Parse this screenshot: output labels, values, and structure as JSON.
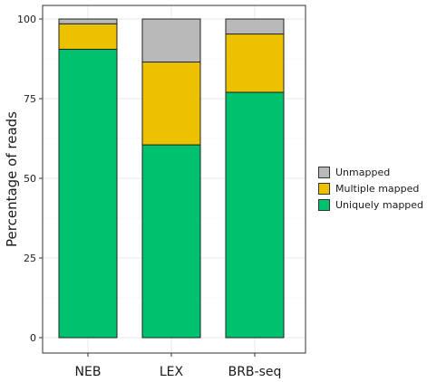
{
  "chart_data": {
    "type": "bar",
    "stacked": true,
    "categories": [
      "NEB",
      "LEX",
      "BRB-seq"
    ],
    "series": [
      {
        "name": "Uniquely mapped",
        "color": "#00C26E",
        "values": [
          90.5,
          60.5,
          77.0
        ]
      },
      {
        "name": "Multiple mapped",
        "color": "#EBC100",
        "values": [
          8.0,
          26.0,
          18.3
        ]
      },
      {
        "name": "Unmapped",
        "color": "#B9B9B9",
        "values": [
          1.5,
          13.5,
          4.7
        ]
      }
    ],
    "ylabel": "Percentage of reads",
    "xlabel": "",
    "ylim": [
      0,
      100
    ],
    "yticks": [
      0,
      25,
      50,
      75,
      100
    ],
    "grid": true,
    "legend_position": "right",
    "legend_order": [
      "Unmapped",
      "Multiple mapped",
      "Uniquely mapped"
    ]
  }
}
